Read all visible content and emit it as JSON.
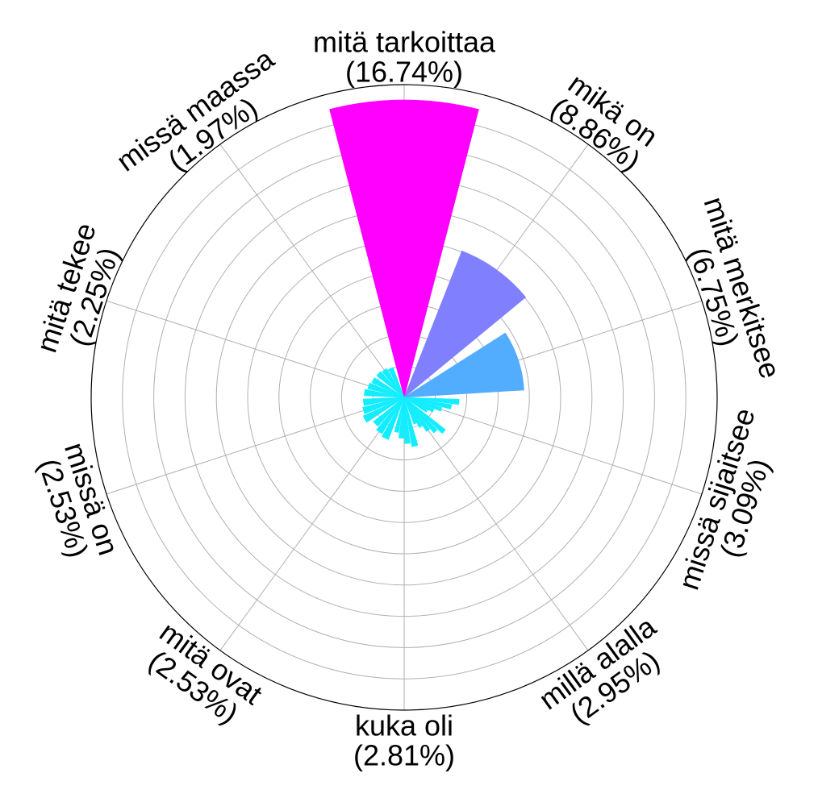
{
  "chart_data": {
    "type": "bar",
    "polar": true,
    "title": "",
    "categories": [
      "mitä tarkoittaa",
      "mikä on",
      "mitä merkitsee",
      "missä sijaitsee",
      "millä alalla",
      "kuka oli",
      "mitä ovat",
      "missä on",
      "mitä tekee",
      "missä maassa"
    ],
    "percent_labels": [
      "(16.74%)",
      "(8.86%)",
      "(6.75%)",
      "(3.09%)",
      "(2.95%)",
      "(2.81%)",
      "(2.53%)",
      "(2.53%)",
      "(2.25%)",
      "(1.97%)"
    ],
    "values": [
      16.74,
      8.86,
      6.75,
      3.09,
      2.95,
      2.81,
      2.53,
      2.53,
      2.25,
      1.97
    ],
    "sub_bars": [
      {
        "values": [
          16.74
        ],
        "color": "#ff00ff"
      },
      {
        "values": [
          8.86
        ],
        "color": "#8080ff"
      },
      {
        "values": [
          6.75
        ],
        "color": "#52acff"
      },
      {
        "values": [
          3.09,
          2.7,
          2.2,
          1.8,
          1.5
        ],
        "color": "#12edff"
      },
      {
        "values": [
          2.95,
          2.6,
          2.3,
          1.9,
          1.6
        ],
        "color": "#12edff"
      },
      {
        "values": [
          2.81,
          2.6,
          2.3,
          2.0
        ],
        "color": "#12edff"
      },
      {
        "values": [
          2.53,
          2.4,
          2.2
        ],
        "color": "#12edff"
      },
      {
        "values": [
          2.53,
          2.4,
          2.3
        ],
        "color": "#12edff"
      },
      {
        "values": [
          2.25,
          2.1,
          2.0
        ],
        "color": "#12edff"
      },
      {
        "values": [
          1.97,
          1.9,
          1.8
        ],
        "color": "#12edff"
      }
    ],
    "rmax": 17.6,
    "ring_count": 9,
    "direction": "clockwise",
    "start": "top",
    "grid": true,
    "legend": "none"
  }
}
